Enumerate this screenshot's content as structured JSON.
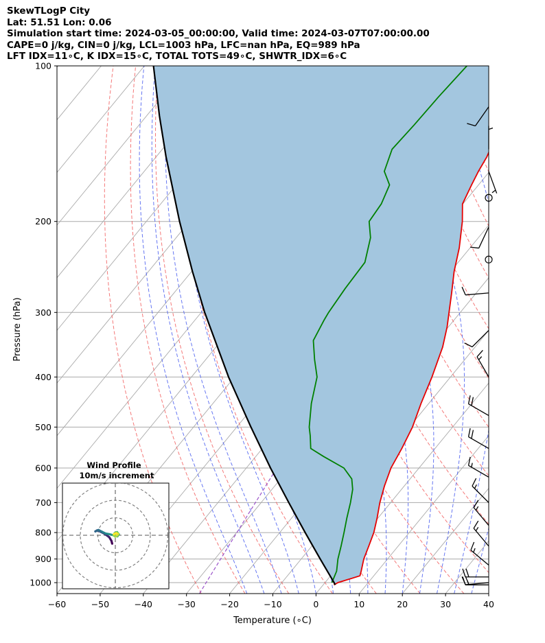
{
  "header": {
    "line1": "SkewTLogP City",
    "line2": "Lat: 51.51   Lon: 0.06",
    "line3": "Simulation start time: 2024-03-05_00:00:00, Valid time: 2024-03-07T07:00:00.00",
    "line4": "CAPE=0 j/kg, CIN=0 j/kg, LCL=1003 hPa, LFC=nan hPa, EQ=989 hPa",
    "line5": "LFT IDX=11∘C, K IDX=15∘C, TOTAL TOTS=49∘C, SHWTR_IDX=6∘C"
  },
  "chart_data": {
    "type": "skew-t log-p",
    "xlabel": "Temperature (∘C)",
    "ylabel": "Pressure (hPa)",
    "xlim": [
      -60,
      40
    ],
    "ylim": [
      1050,
      100
    ],
    "x_ticks": [
      "−60",
      "−50",
      "−40",
      "−30",
      "−20",
      "−10",
      "0",
      "10",
      "20",
      "30",
      "40"
    ],
    "x_tick_values": [
      -60,
      -50,
      -40,
      -30,
      -20,
      -10,
      0,
      10,
      20,
      30,
      40
    ],
    "y_ticks": [
      100,
      200,
      300,
      400,
      500,
      600,
      700,
      800,
      900,
      1000
    ],
    "y_scale": "log",
    "grid": true,
    "colors": {
      "temperature": "#e60000",
      "dewpoint": "#008000",
      "parcel": "#000000",
      "area_fill": "#a3c6df",
      "dry_adiabat": "#f26060",
      "moist_adiabat": "#4a5ef0",
      "mixing_ratio": "#9a52c9",
      "isotherm": "#aaaaaa"
    },
    "temperature_profile": [
      {
        "p": 1010,
        "t": 2.5
      },
      {
        "p": 1000,
        "t": 3
      },
      {
        "p": 970,
        "t": 6.8
      },
      {
        "p": 950,
        "t": 6.2
      },
      {
        "p": 900,
        "t": 4.5
      },
      {
        "p": 850,
        "t": 3.2
      },
      {
        "p": 800,
        "t": 1.8
      },
      {
        "p": 750,
        "t": -0.2
      },
      {
        "p": 700,
        "t": -2.5
      },
      {
        "p": 650,
        "t": -4.6
      },
      {
        "p": 600,
        "t": -6.5
      },
      {
        "p": 550,
        "t": -7.7
      },
      {
        "p": 500,
        "t": -9.3
      },
      {
        "p": 450,
        "t": -11.8
      },
      {
        "p": 400,
        "t": -14.3
      },
      {
        "p": 350,
        "t": -17.5
      },
      {
        "p": 320,
        "t": -20.3
      },
      {
        "p": 300,
        "t": -22.6
      },
      {
        "p": 275,
        "t": -25.7
      },
      {
        "p": 250,
        "t": -29.2
      },
      {
        "p": 225,
        "t": -32.5
      },
      {
        "p": 200,
        "t": -36.8
      },
      {
        "p": 185,
        "t": -40.1
      },
      {
        "p": 170,
        "t": -41.6
      },
      {
        "p": 160,
        "t": -42.6
      },
      {
        "p": 150,
        "t": -43.4
      },
      {
        "p": 140,
        "t": -44.8
      },
      {
        "p": 130,
        "t": -45.8
      },
      {
        "p": 120,
        "t": -46.2
      },
      {
        "p": 110,
        "t": -47.3
      },
      {
        "p": 100,
        "t": -48.3
      }
    ],
    "dewpoint_profile": [
      {
        "p": 1000,
        "t": 1.6
      },
      {
        "p": 950,
        "t": 0.5
      },
      {
        "p": 900,
        "t": -1.5
      },
      {
        "p": 850,
        "t": -3.2
      },
      {
        "p": 800,
        "t": -5.1
      },
      {
        "p": 750,
        "t": -7.2
      },
      {
        "p": 700,
        "t": -9.3
      },
      {
        "p": 660,
        "t": -11.3
      },
      {
        "p": 630,
        "t": -13.5
      },
      {
        "p": 600,
        "t": -17.4
      },
      {
        "p": 570,
        "t": -24.3
      },
      {
        "p": 550,
        "t": -28.8
      },
      {
        "p": 520,
        "t": -31.3
      },
      {
        "p": 500,
        "t": -33.2
      },
      {
        "p": 450,
        "t": -37.2
      },
      {
        "p": 400,
        "t": -40.9
      },
      {
        "p": 370,
        "t": -44.8
      },
      {
        "p": 340,
        "t": -48.7
      },
      {
        "p": 310,
        "t": -50.1
      },
      {
        "p": 300,
        "t": -50.5
      },
      {
        "p": 270,
        "t": -51.2
      },
      {
        "p": 240,
        "t": -51.6
      },
      {
        "p": 215,
        "t": -55.0
      },
      {
        "p": 200,
        "t": -58.4
      },
      {
        "p": 185,
        "t": -58.9
      },
      {
        "p": 170,
        "t": -60.6
      },
      {
        "p": 160,
        "t": -64.4
      },
      {
        "p": 145,
        "t": -66.8
      },
      {
        "p": 130,
        "t": -66.3
      },
      {
        "p": 115,
        "t": -66.0
      },
      {
        "p": 100,
        "t": -65.3
      }
    ],
    "parcel_profile": [
      {
        "p": 1010,
        "t": 2.8
      },
      {
        "p": 1000,
        "t": 2.1
      },
      {
        "p": 900,
        "t": -5.6
      },
      {
        "p": 800,
        "t": -14.1
      },
      {
        "p": 700,
        "t": -23.6
      },
      {
        "p": 600,
        "t": -34.4
      },
      {
        "p": 500,
        "t": -46.7
      },
      {
        "p": 400,
        "t": -61.4
      },
      {
        "p": 300,
        "t": -79.2
      },
      {
        "p": 250,
        "t": -89.8
      },
      {
        "p": 200,
        "t": -102.3
      },
      {
        "p": 150,
        "t": -117.7
      },
      {
        "p": 125,
        "t": -127.0
      },
      {
        "p": 100,
        "t": -137.9
      }
    ],
    "wind_barbs": [
      {
        "p": 1010,
        "speed_kt": 15,
        "dir": 270
      },
      {
        "p": 1000,
        "speed_kt": 20,
        "dir": 265
      },
      {
        "p": 975,
        "speed_kt": 20,
        "dir": 270
      },
      {
        "p": 925,
        "speed_kt": 15,
        "dir": 310
      },
      {
        "p": 850,
        "speed_kt": 15,
        "dir": 320
      },
      {
        "p": 775,
        "speed_kt": 15,
        "dir": 320
      },
      {
        "p": 700,
        "speed_kt": 15,
        "dir": 315
      },
      {
        "p": 625,
        "speed_kt": 15,
        "dir": 300
      },
      {
        "p": 550,
        "speed_kt": 20,
        "dir": 300
      },
      {
        "p": 475,
        "speed_kt": 20,
        "dir": 300
      },
      {
        "p": 400,
        "speed_kt": 15,
        "dir": 330
      },
      {
        "p": 325,
        "speed_kt": 10,
        "dir": 225
      },
      {
        "p": 275,
        "speed_kt": 10,
        "dir": 265
      },
      {
        "p": 237,
        "speed_kt": 0,
        "dir": 0
      },
      {
        "p": 205,
        "speed_kt": 10,
        "dir": 205
      },
      {
        "p": 180,
        "speed_kt": 0,
        "dir": 0
      },
      {
        "p": 160,
        "speed_kt": 5,
        "dir": 160
      },
      {
        "p": 145,
        "speed_kt": 5,
        "dir": 0
      },
      {
        "p": 120,
        "speed_kt": 10,
        "dir": 215
      }
    ],
    "hodograph": {
      "title": "Wind Profile",
      "subtitle": "10m/s increment",
      "rings_ms": [
        10,
        20,
        30
      ],
      "points_uv_ms": [
        [
          -1.8,
          -4.8
        ],
        [
          -2.2,
          -3.2
        ],
        [
          -3.4,
          -1.2
        ],
        [
          -4.4,
          -0.4
        ],
        [
          -6.4,
          1.0
        ],
        [
          -8.8,
          2.2
        ],
        [
          -10.4,
          2.8
        ],
        [
          -11.4,
          2.2
        ],
        [
          -9.6,
          3.0
        ],
        [
          -7.6,
          2.0
        ],
        [
          -5.6,
          1.0
        ],
        [
          -3.4,
          0.6
        ],
        [
          -1.0,
          0.0
        ],
        [
          1.2,
          -0.6
        ],
        [
          2.0,
          0.6
        ],
        [
          1.0,
          1.8
        ],
        [
          -0.4,
          1.2
        ],
        [
          -1.0,
          0.0
        ],
        [
          0.0,
          -0.8
        ],
        [
          1.0,
          -0.2
        ],
        [
          1.6,
          0.8
        ],
        [
          0.6,
          1.2
        ],
        [
          -0.8,
          0.6
        ]
      ]
    }
  }
}
